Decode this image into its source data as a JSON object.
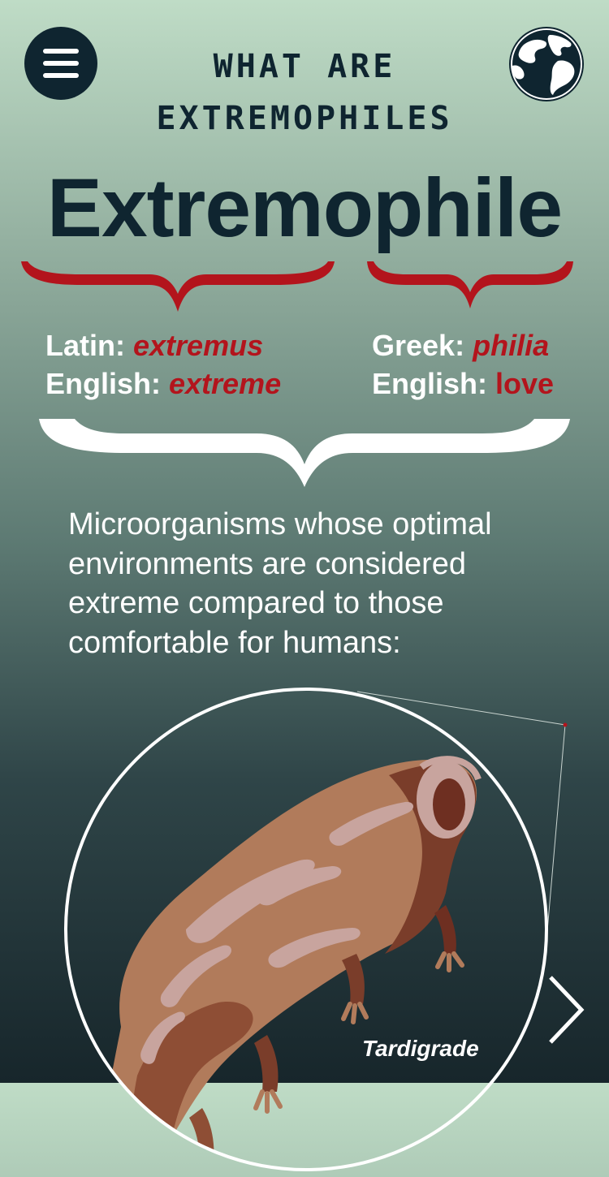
{
  "header": {
    "title": "WHAT ARE EXTREMOPHILES",
    "menu_icon": "hamburger-menu-icon",
    "globe_icon": "globe-icon"
  },
  "word": "Extremophile",
  "etymology": {
    "left": {
      "lang_label": "Latin:",
      "lang_word": "extremus",
      "english_label": "English:",
      "english_word": "extreme"
    },
    "right": {
      "lang_label": "Greek:",
      "lang_word": "philia",
      "english_label": "English:",
      "english_word": "love"
    }
  },
  "definition": "Microorganisms whose optimal environments are considered extreme compared to those comfortable for humans:",
  "illustration": {
    "caption": "Tardigrade"
  },
  "colors": {
    "navy": "#0f2530",
    "accent_red": "#b3141c",
    "white": "#ffffff"
  },
  "next_icon": "chevron-right-icon"
}
